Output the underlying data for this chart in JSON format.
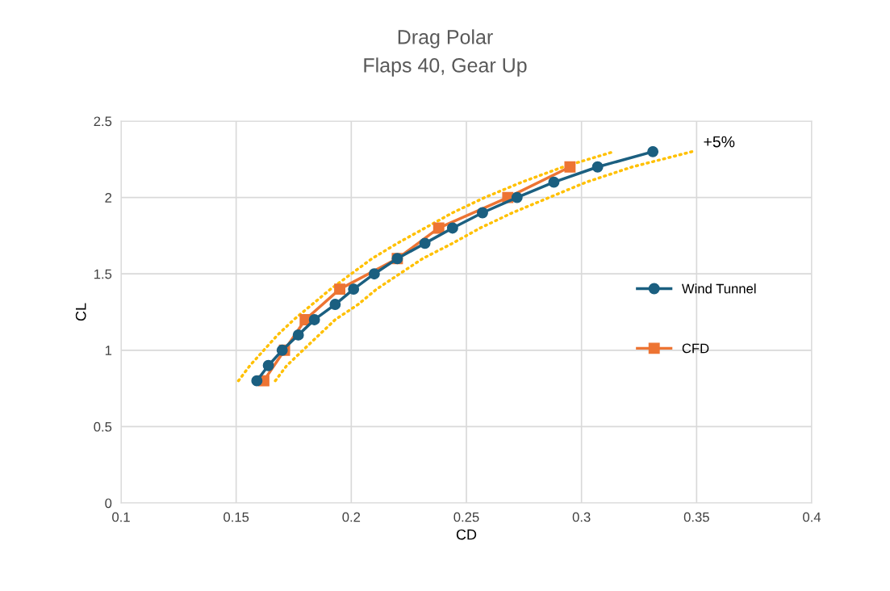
{
  "chart_data": {
    "type": "line",
    "title": "Drag Polar",
    "subtitle": "Flaps 40, Gear Up",
    "xlabel": "CD",
    "ylabel": "CL",
    "xlim": [
      0.1,
      0.4
    ],
    "xticks": [
      0.1,
      0.15,
      0.2,
      0.25,
      0.3,
      0.35,
      0.4
    ],
    "ylim": [
      0,
      2.5
    ],
    "yticks": [
      0,
      0.5,
      1,
      1.5,
      2,
      2.5
    ],
    "grid": true,
    "legend": "right",
    "line_style": "solid",
    "series": [
      {
        "name": "Wind Tunnel",
        "color": "#1b5f80",
        "marker": "circle",
        "x": [
          0.159,
          0.164,
          0.17,
          0.177,
          0.184,
          0.193,
          0.201,
          0.21,
          0.22,
          0.232,
          0.244,
          0.257,
          0.272,
          0.288,
          0.307,
          0.331
        ],
        "values": [
          0.8,
          0.9,
          1.0,
          1.1,
          1.2,
          1.3,
          1.4,
          1.5,
          1.6,
          1.7,
          1.8,
          1.9,
          2.0,
          2.1,
          2.2,
          2.3
        ]
      },
      {
        "name": "CFD",
        "color": "#ed7433",
        "marker": "square",
        "x": [
          0.162,
          0.171,
          0.18,
          0.195,
          0.22,
          0.238,
          0.268,
          0.295
        ],
        "values": [
          0.8,
          1.0,
          1.2,
          1.4,
          1.6,
          1.8,
          2.0,
          2.2
        ]
      },
      {
        "color": "#ffc000",
        "marker": "none",
        "line_style": "dotted",
        "x": [
          0.151,
          0.156,
          0.162,
          0.168,
          0.175,
          0.183,
          0.191,
          0.2,
          0.209,
          0.22,
          0.232,
          0.244,
          0.258,
          0.274,
          0.292,
          0.314
        ],
        "values": [
          0.8,
          0.9,
          1.0,
          1.1,
          1.2,
          1.3,
          1.4,
          1.5,
          1.6,
          1.7,
          1.8,
          1.9,
          2.0,
          2.1,
          2.2,
          2.3
        ]
      },
      {
        "color": "#ffc000",
        "marker": "none",
        "line_style": "dotted",
        "x": [
          0.167,
          0.172,
          0.179,
          0.186,
          0.193,
          0.203,
          0.211,
          0.221,
          0.231,
          0.244,
          0.256,
          0.27,
          0.286,
          0.302,
          0.322,
          0.348
        ],
        "values": [
          0.8,
          0.9,
          1.0,
          1.1,
          1.2,
          1.3,
          1.4,
          1.5,
          1.6,
          1.7,
          1.8,
          1.9,
          2.0,
          2.1,
          2.2,
          2.3
        ]
      }
    ],
    "annotations": [
      {
        "text": "+5%",
        "x": 0.348,
        "y": 2.3
      }
    ]
  }
}
